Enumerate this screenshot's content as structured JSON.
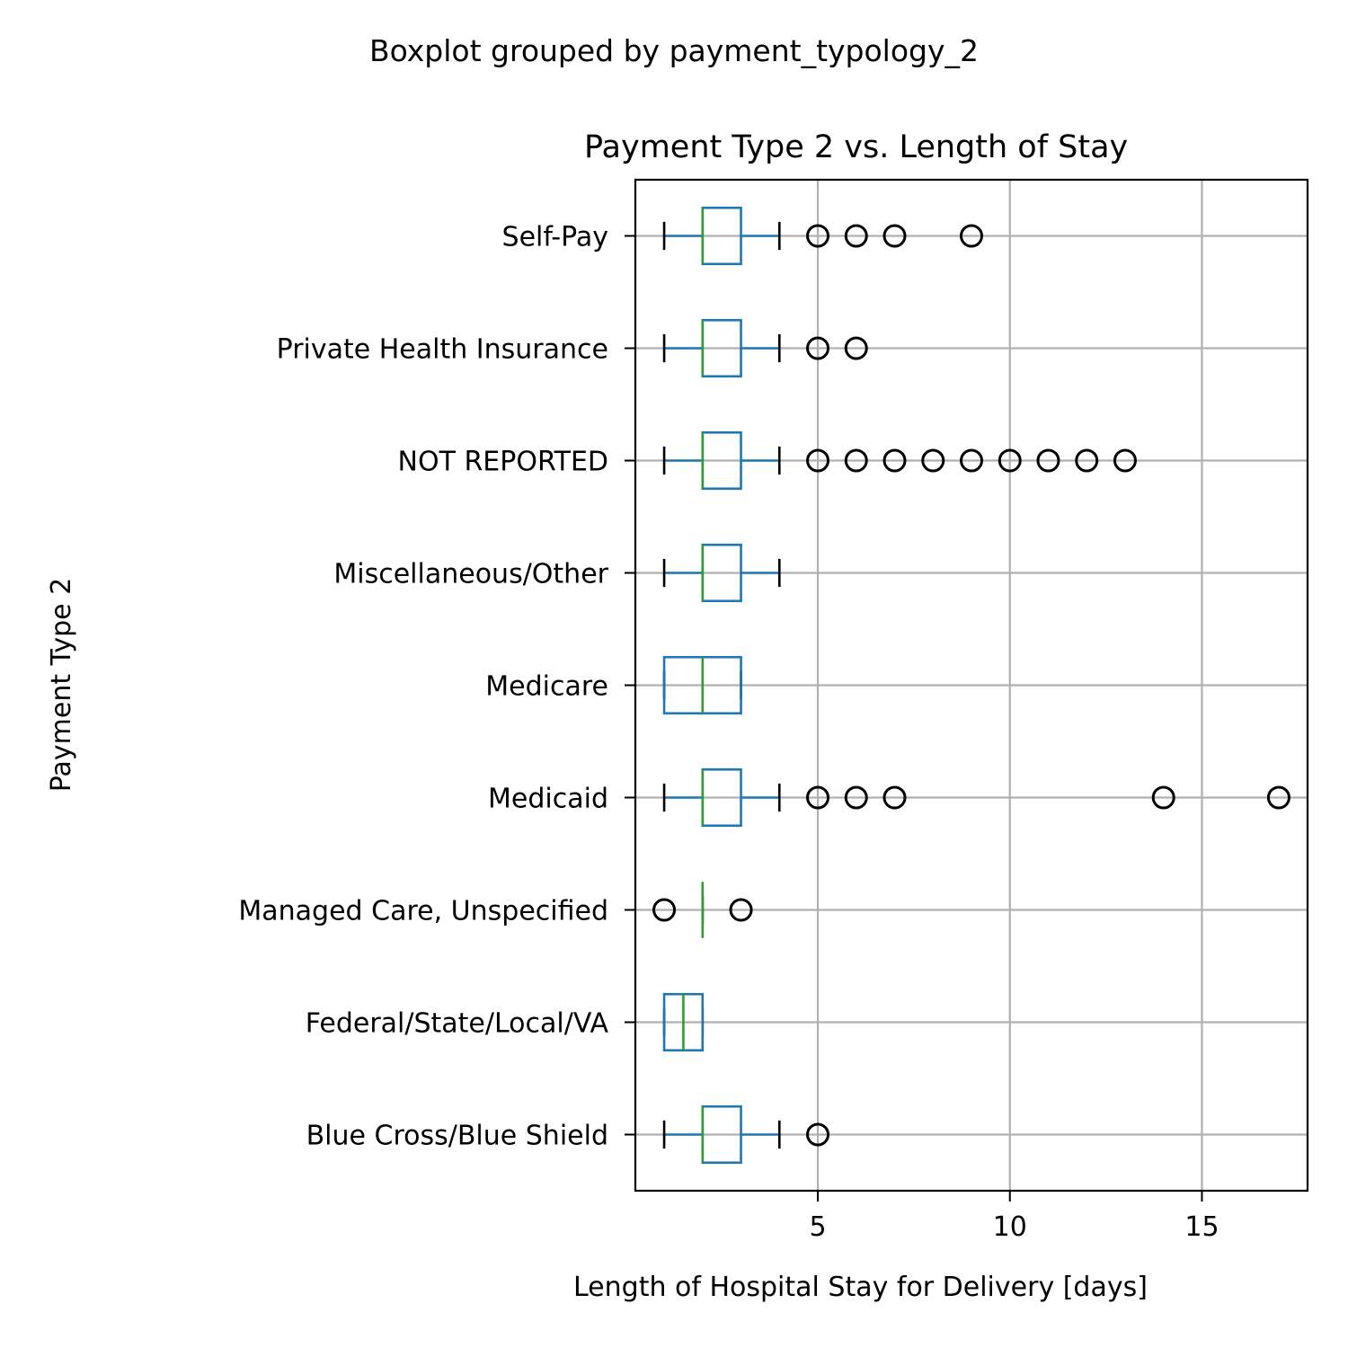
{
  "chart_data": {
    "type": "boxplot",
    "orientation": "horizontal",
    "suptitle": "Boxplot grouped by payment_typology_2",
    "title": "Payment Type 2 vs. Length of Stay",
    "xlabel": "Length of Hospital Stay for Delivery [days]",
    "ylabel": "Payment Type 2",
    "xlim": [
      0.25,
      17.75
    ],
    "xticks": [
      5,
      10,
      15
    ],
    "grid": true,
    "colors": {
      "box": "#1f77b4",
      "median": "#2ca02c",
      "whisker": "#1f77b4",
      "cap": "#000000",
      "flier": "#000000",
      "grid": "#b0b0b0",
      "frame": "#000000"
    },
    "categories": [
      "Blue Cross/Blue Shield",
      "Federal/State/Local/VA",
      "Managed Care, Unspecified",
      "Medicaid",
      "Medicare",
      "Miscellaneous/Other",
      "NOT REPORTED",
      "Private Health Insurance",
      "Self-Pay"
    ],
    "boxes": [
      {
        "whislo": 1,
        "q1": 2,
        "med": 2,
        "q3": 3,
        "whishi": 4,
        "fliers": [
          5
        ]
      },
      {
        "whislo": 1,
        "q1": 1,
        "med": 1.5,
        "q3": 2,
        "whishi": 2,
        "fliers": []
      },
      {
        "whislo": 2,
        "q1": 2,
        "med": 2,
        "q3": 2,
        "whishi": 2,
        "fliers": [
          1,
          3
        ]
      },
      {
        "whislo": 1,
        "q1": 2,
        "med": 2,
        "q3": 3,
        "whishi": 4,
        "fliers": [
          5,
          6,
          7,
          14,
          17
        ]
      },
      {
        "whislo": 1,
        "q1": 1,
        "med": 2,
        "q3": 3,
        "whishi": 3,
        "fliers": []
      },
      {
        "whislo": 1,
        "q1": 2,
        "med": 2,
        "q3": 3,
        "whishi": 4,
        "fliers": []
      },
      {
        "whislo": 1,
        "q1": 2,
        "med": 2,
        "q3": 3,
        "whishi": 4,
        "fliers": [
          5,
          6,
          7,
          8,
          9,
          10,
          11,
          12,
          13
        ]
      },
      {
        "whislo": 1,
        "q1": 2,
        "med": 2,
        "q3": 3,
        "whishi": 4,
        "fliers": [
          5,
          6
        ]
      },
      {
        "whislo": 1,
        "q1": 2,
        "med": 2,
        "q3": 3,
        "whishi": 4,
        "fliers": [
          5,
          6,
          7,
          9
        ]
      }
    ]
  }
}
